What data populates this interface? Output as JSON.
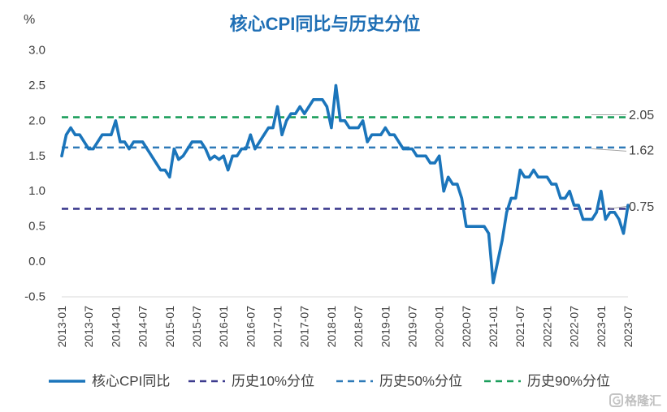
{
  "chart_data": {
    "type": "line",
    "title": "核心CPI同比与历史分位",
    "ylabel": "%",
    "ylim": [
      -0.5,
      3.0
    ],
    "yticks": [
      "3.0",
      "2.5",
      "2.0",
      "1.5",
      "1.0",
      "0.5",
      "0.0",
      "-0.5"
    ],
    "xticks": [
      "2013-01",
      "2013-07",
      "2014-01",
      "2014-07",
      "2015-01",
      "2015-07",
      "2016-01",
      "2016-07",
      "2017-01",
      "2017-07",
      "2018-01",
      "2018-07",
      "2019-01",
      "2019-07",
      "2020-01",
      "2020-07",
      "2021-01",
      "2021-07",
      "2022-01",
      "2022-07",
      "2023-01",
      "2023-07"
    ],
    "x": [
      "2013-01",
      "2013-02",
      "2013-03",
      "2013-04",
      "2013-05",
      "2013-06",
      "2013-07",
      "2013-08",
      "2013-09",
      "2013-10",
      "2013-11",
      "2013-12",
      "2014-01",
      "2014-02",
      "2014-03",
      "2014-04",
      "2014-05",
      "2014-06",
      "2014-07",
      "2014-08",
      "2014-09",
      "2014-10",
      "2014-11",
      "2014-12",
      "2015-01",
      "2015-02",
      "2015-03",
      "2015-04",
      "2015-05",
      "2015-06",
      "2015-07",
      "2015-08",
      "2015-09",
      "2015-10",
      "2015-11",
      "2015-12",
      "2016-01",
      "2016-02",
      "2016-03",
      "2016-04",
      "2016-05",
      "2016-06",
      "2016-07",
      "2016-08",
      "2016-09",
      "2016-10",
      "2016-11",
      "2016-12",
      "2017-01",
      "2017-02",
      "2017-03",
      "2017-04",
      "2017-05",
      "2017-06",
      "2017-07",
      "2017-08",
      "2017-09",
      "2017-10",
      "2017-11",
      "2017-12",
      "2018-01",
      "2018-02",
      "2018-03",
      "2018-04",
      "2018-05",
      "2018-06",
      "2018-07",
      "2018-08",
      "2018-09",
      "2018-10",
      "2018-11",
      "2018-12",
      "2019-01",
      "2019-02",
      "2019-03",
      "2019-04",
      "2019-05",
      "2019-06",
      "2019-07",
      "2019-08",
      "2019-09",
      "2019-10",
      "2019-11",
      "2019-12",
      "2020-01",
      "2020-02",
      "2020-03",
      "2020-04",
      "2020-05",
      "2020-06",
      "2020-07",
      "2020-08",
      "2020-09",
      "2020-10",
      "2020-11",
      "2020-12",
      "2021-01",
      "2021-02",
      "2021-03",
      "2021-04",
      "2021-05",
      "2021-06",
      "2021-07",
      "2021-08",
      "2021-09",
      "2021-10",
      "2021-11",
      "2021-12",
      "2022-01",
      "2022-02",
      "2022-03",
      "2022-04",
      "2022-05",
      "2022-06",
      "2022-07",
      "2022-08",
      "2022-09",
      "2022-10",
      "2022-11",
      "2022-12",
      "2023-01",
      "2023-02",
      "2023-03",
      "2023-04",
      "2023-05",
      "2023-06",
      "2023-07"
    ],
    "series": [
      {
        "name": "核心CPI同比",
        "color": "#1b75bb",
        "values": [
          1.5,
          1.8,
          1.9,
          1.8,
          1.8,
          1.7,
          1.6,
          1.6,
          1.7,
          1.8,
          1.8,
          1.8,
          2.0,
          1.7,
          1.7,
          1.6,
          1.7,
          1.7,
          1.7,
          1.6,
          1.5,
          1.4,
          1.3,
          1.3,
          1.2,
          1.6,
          1.45,
          1.5,
          1.6,
          1.7,
          1.7,
          1.7,
          1.6,
          1.45,
          1.5,
          1.45,
          1.5,
          1.3,
          1.5,
          1.5,
          1.6,
          1.6,
          1.8,
          1.6,
          1.7,
          1.8,
          1.9,
          1.9,
          2.2,
          1.8,
          2.0,
          2.1,
          2.1,
          2.2,
          2.1,
          2.2,
          2.3,
          2.3,
          2.3,
          2.2,
          1.9,
          2.5,
          2.0,
          2.0,
          1.9,
          1.9,
          1.9,
          2.0,
          1.7,
          1.8,
          1.8,
          1.8,
          1.9,
          1.8,
          1.8,
          1.7,
          1.6,
          1.6,
          1.6,
          1.5,
          1.5,
          1.5,
          1.4,
          1.4,
          1.5,
          1.0,
          1.2,
          1.1,
          1.1,
          0.9,
          0.5,
          0.5,
          0.5,
          0.5,
          0.5,
          0.4,
          -0.3,
          0.0,
          0.3,
          0.7,
          0.9,
          0.9,
          1.3,
          1.2,
          1.2,
          1.3,
          1.2,
          1.2,
          1.2,
          1.1,
          1.1,
          0.9,
          0.9,
          1.0,
          0.8,
          0.8,
          0.6,
          0.6,
          0.6,
          0.7,
          1.0,
          0.6,
          0.7,
          0.7,
          0.6,
          0.4,
          0.8
        ]
      },
      {
        "name": "历史10%分位",
        "color": "#3d3b8e",
        "constant": 0.75
      },
      {
        "name": "历史50%分位",
        "color": "#2e7ab8",
        "constant": 1.62
      },
      {
        "name": "历史90%分位",
        "color": "#1b9e5b",
        "constant": 2.05
      }
    ],
    "legend": "bottom",
    "grid": false
  },
  "watermark": {
    "text": "格隆汇"
  }
}
